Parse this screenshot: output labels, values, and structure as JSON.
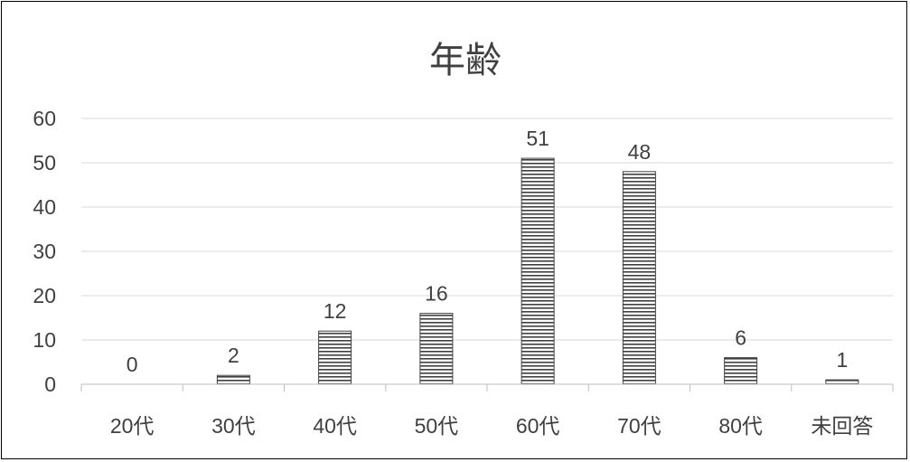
{
  "chart_data": {
    "type": "bar",
    "title": "年齢",
    "categories": [
      "20代",
      "30代",
      "40代",
      "50代",
      "60代",
      "70代",
      "80代",
      "未回答"
    ],
    "values": [
      0,
      2,
      12,
      16,
      51,
      48,
      6,
      1
    ],
    "ylim": [
      0,
      60
    ],
    "yticks": [
      0,
      10,
      20,
      30,
      40,
      50,
      60
    ],
    "grid": true,
    "legend": "none",
    "bar_fill": "horizontal-stripes",
    "bar_color": "#404040"
  }
}
